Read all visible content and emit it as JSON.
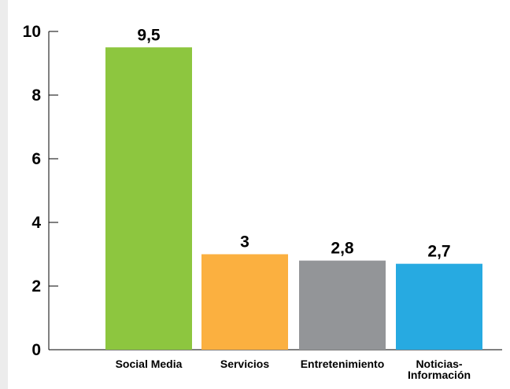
{
  "chart_data": {
    "type": "bar",
    "categories": [
      [
        "Social Media"
      ],
      [
        "Servicios"
      ],
      [
        "Entretenimiento"
      ],
      [
        "Noticias-",
        "Información"
      ]
    ],
    "values": [
      9.5,
      3,
      2.8,
      2.7
    ],
    "value_labels": [
      "9,5",
      "3",
      "2,8",
      "2,7"
    ],
    "colors": [
      "#8dc63f",
      "#fbb040",
      "#939598",
      "#27aae1"
    ],
    "yticks": [
      "0",
      "2",
      "4",
      "6",
      "8",
      "10"
    ],
    "ylim": [
      0,
      10
    ],
    "grid": false,
    "title": "",
    "xlabel": "",
    "ylabel": ""
  }
}
